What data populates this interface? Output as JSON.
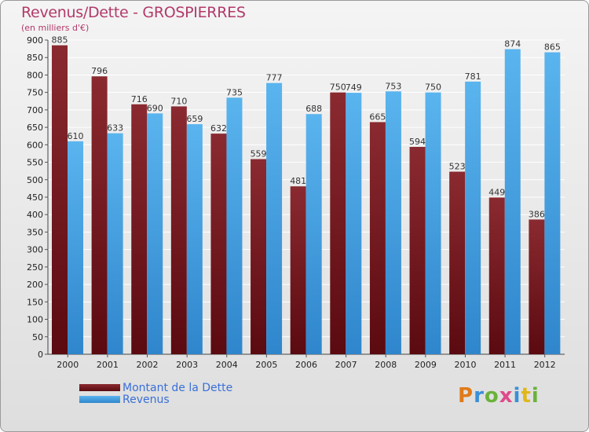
{
  "title": "Revenus/Dette - GROSPIERRES",
  "subtitle": "(en milliers d'€)",
  "logo": "Proxiti",
  "colors": {
    "debt": "#7b1d25",
    "revenue": "#4aa3e3",
    "title": "#b23a6a",
    "legend_text": "#3a6fd8"
  },
  "chart_data": {
    "type": "bar",
    "categories": [
      "2000",
      "2001",
      "2002",
      "2003",
      "2004",
      "2005",
      "2006",
      "2007",
      "2008",
      "2009",
      "2010",
      "2011",
      "2012"
    ],
    "series": [
      {
        "name": "Montant de la Dette",
        "values": [
          885,
          796,
          716,
          710,
          632,
          559,
          481,
          750,
          665,
          594,
          523,
          449,
          386
        ]
      },
      {
        "name": "Revenus",
        "values": [
          610,
          633,
          690,
          659,
          735,
          777,
          688,
          749,
          753,
          750,
          781,
          874,
          865
        ]
      }
    ],
    "yticks": [
      0,
      50,
      100,
      150,
      200,
      250,
      300,
      350,
      400,
      450,
      500,
      550,
      600,
      650,
      700,
      750,
      800,
      850,
      900
    ],
    "ylim": [
      0,
      900
    ],
    "grid": true,
    "legend_position": "bottom-left"
  }
}
